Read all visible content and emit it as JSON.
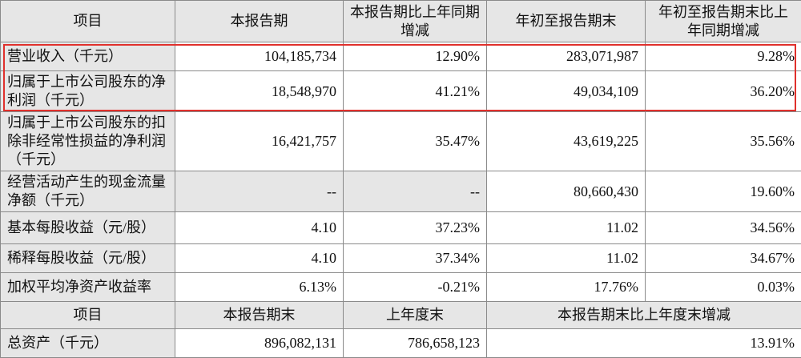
{
  "table": {
    "header": [
      "项目",
      "本报告期",
      "本报告期比上年同期增减",
      "年初至报告期末",
      "年初至报告期末比上年同期增减"
    ],
    "rows": [
      [
        "营业收入（千元）",
        "104,185,734",
        "12.90%",
        "283,071,987",
        "9.28%"
      ],
      [
        "归属于上市公司股东的净利润（千元）",
        "18,548,970",
        "41.21%",
        "49,034,109",
        "36.20%"
      ],
      [
        "归属于上市公司股东的扣除非经常性损益的净利润（千元）",
        "16,421,757",
        "35.47%",
        "43,619,225",
        "35.56%"
      ],
      [
        "经营活动产生的现金流量净额（千元）",
        "--",
        "--",
        "80,660,430",
        "19.60%"
      ],
      [
        "基本每股收益（元/股）",
        "4.10",
        "37.23%",
        "11.02",
        "34.56%"
      ],
      [
        "稀释每股收益（元/股）",
        "4.10",
        "37.34%",
        "11.02",
        "34.67%"
      ],
      [
        "加权平均净资产收益率",
        "6.13%",
        "-0.21%",
        "17.76%",
        "0.03%"
      ]
    ],
    "header2": [
      "项目",
      "本报告期末",
      "上年度末",
      "本报告期末比上年度末增减"
    ],
    "rows2": [
      [
        "总资产（千元）",
        "896,082,131",
        "786,658,123",
        "13.91%"
      ]
    ]
  }
}
